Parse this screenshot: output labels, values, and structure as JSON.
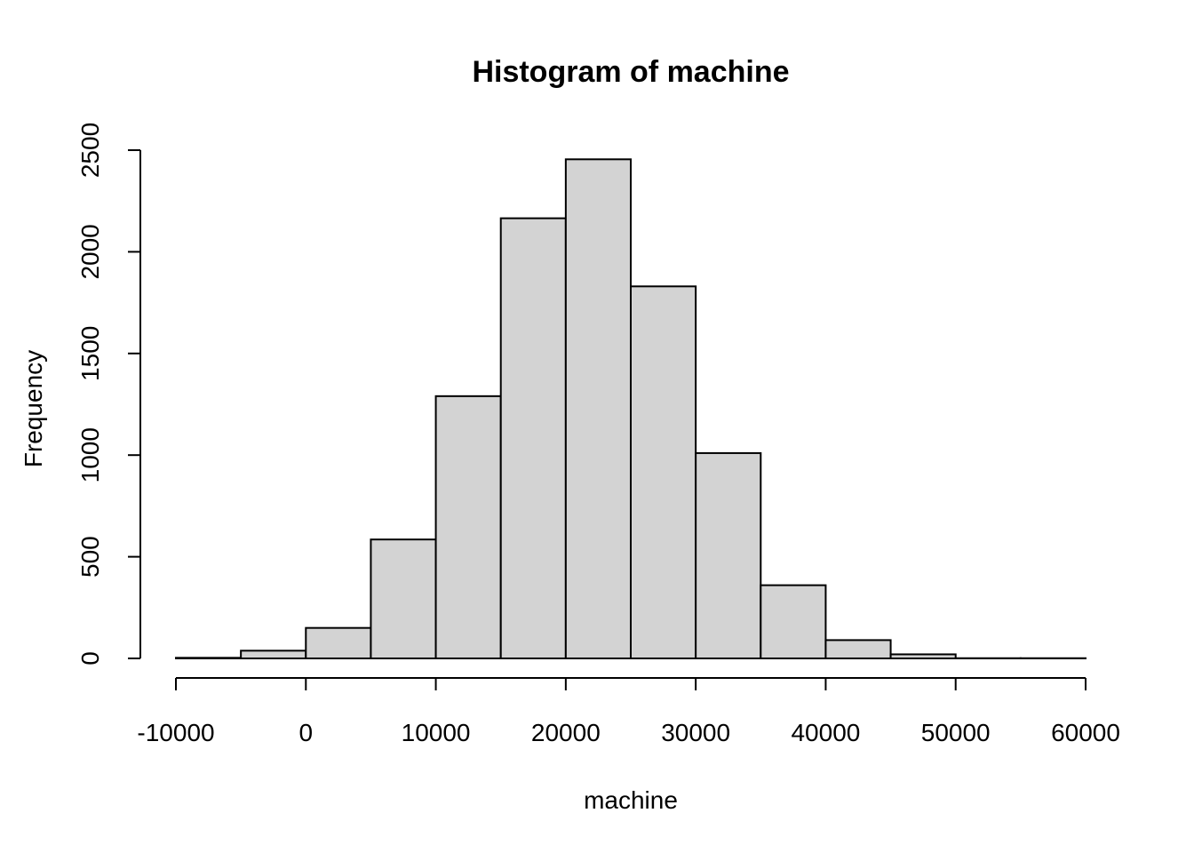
{
  "chart_data": {
    "type": "bar",
    "title": "Histogram of machine",
    "xlabel": "machine",
    "ylabel": "Frequency",
    "bin_edges": [
      -10000,
      -5000,
      0,
      5000,
      10000,
      15000,
      20000,
      25000,
      30000,
      35000,
      40000,
      45000,
      50000,
      55000,
      60000
    ],
    "values": [
      3,
      38,
      150,
      585,
      1290,
      2165,
      2455,
      1830,
      1010,
      360,
      90,
      20,
      1,
      1
    ],
    "xlim": [
      -10000,
      60000
    ],
    "ylim": [
      0,
      2500
    ],
    "xticks": [
      -10000,
      0,
      10000,
      20000,
      30000,
      40000,
      50000,
      60000
    ],
    "yticks": [
      0,
      500,
      1000,
      1500,
      2000,
      2500
    ],
    "xtick_labels": [
      "-10000",
      "0",
      "10000",
      "20000",
      "30000",
      "40000",
      "50000",
      "60000"
    ],
    "ytick_labels": [
      "0",
      "500",
      "1000",
      "1500",
      "2000",
      "2500"
    ],
    "grid": false,
    "legend": "none",
    "bar_color": "#d3d3d3"
  }
}
